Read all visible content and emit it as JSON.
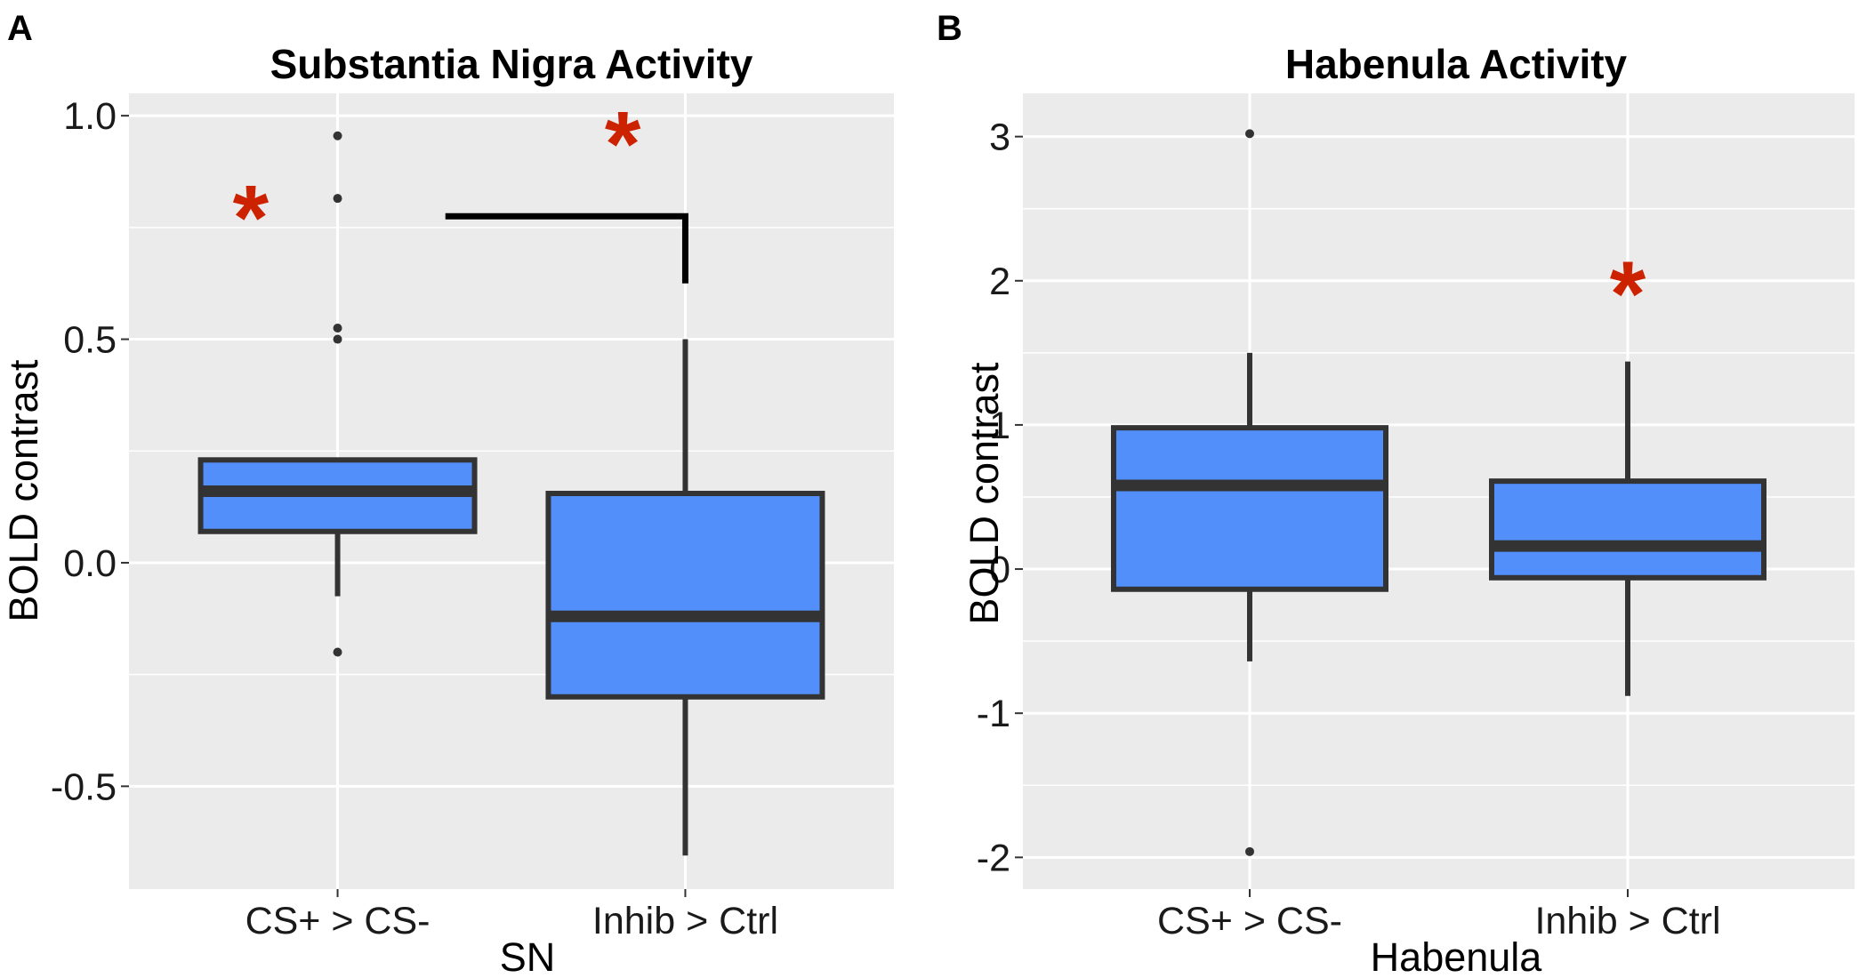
{
  "colors": {
    "box_fill": "#528ffb",
    "box_line": "#333333",
    "significance": "#cc2200",
    "panel_bg": "#ebebeb"
  },
  "chart_data": [
    {
      "type": "box",
      "panel_label": "A",
      "title": "Substantia Nigra Activity",
      "xlabel": "SN",
      "ylabel": "BOLD contrast",
      "ylim": [
        -0.73,
        1.05
      ],
      "yticks": [
        -0.5,
        0.0,
        0.5,
        1.0
      ],
      "ytick_labels": [
        "-0.5",
        "0.0",
        "0.5",
        "1.0"
      ],
      "categories": [
        "CS+ > CS-",
        "Inhib > Ctrl"
      ],
      "boxes": [
        {
          "category": "CS+ > CS-",
          "q1": 0.07,
          "median": 0.16,
          "q3": 0.23,
          "whisker_low": -0.075,
          "whisker_high": 0.23,
          "outliers": [
            -0.2,
            0.5,
            0.525,
            0.815,
            0.955
          ]
        },
        {
          "category": "Inhib > Ctrl",
          "q1": -0.3,
          "median": -0.12,
          "q3": 0.155,
          "whisker_low": -0.655,
          "whisker_high": 0.5,
          "outliers": []
        }
      ],
      "annotations": [
        {
          "text": "*",
          "x": 0.75,
          "y": 0.8
        },
        {
          "text": "*",
          "x": 1.82,
          "y": 0.965
        }
      ],
      "bracket": {
        "x_start": 1.31,
        "x_end": 2.0,
        "y_top": 0.775,
        "y_bottom": 0.625
      }
    },
    {
      "type": "box",
      "panel_label": "B",
      "title": "Habenula Activity",
      "xlabel": "Habenula",
      "ylabel": "BOLD contrast",
      "ylim": [
        -2.22,
        3.3
      ],
      "yticks": [
        -2,
        -1,
        0,
        1,
        2,
        3
      ],
      "ytick_labels": [
        "-2",
        "-1",
        "0",
        "1",
        "2",
        "3"
      ],
      "categories": [
        "CS+ > CS-",
        "Inhib > Ctrl"
      ],
      "boxes": [
        {
          "category": "CS+ > CS-",
          "q1": -0.14,
          "median": 0.58,
          "q3": 0.98,
          "whisker_low": -0.64,
          "whisker_high": 1.5,
          "outliers": [
            -1.96,
            3.02
          ]
        },
        {
          "category": "Inhib > Ctrl",
          "q1": -0.06,
          "median": 0.16,
          "q3": 0.61,
          "whisker_low": -0.88,
          "whisker_high": 1.44,
          "outliers": []
        }
      ],
      "annotations": [
        {
          "text": "*",
          "x": 2.0,
          "y": 2.0
        }
      ]
    }
  ]
}
